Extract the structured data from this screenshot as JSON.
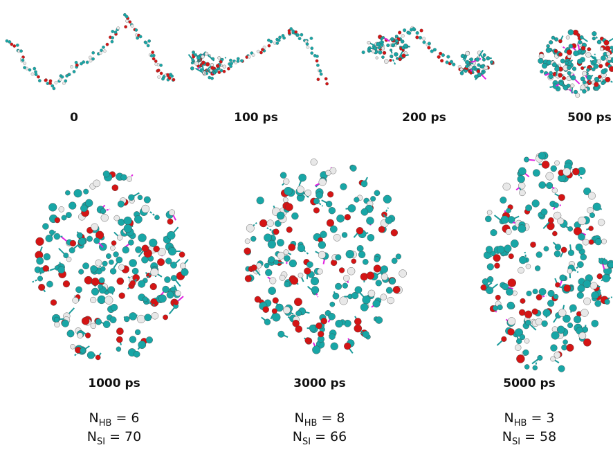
{
  "snapshots_top": [
    {
      "time": "0"
    },
    {
      "time": "100 ps"
    },
    {
      "time": "200 ps"
    },
    {
      "time": "500 ps"
    }
  ],
  "snapshots_bottom": [
    {
      "time": "1000 ps",
      "hb": {
        "symbol": "N",
        "sub": "HB",
        "value": "= 6"
      },
      "si": {
        "symbol": "N",
        "sub": "SI",
        "value": "= 70"
      }
    },
    {
      "time": "3000 ps",
      "hb": {
        "symbol": "N",
        "sub": "HB",
        "value": "= 8"
      },
      "si": {
        "symbol": "N",
        "sub": "SI",
        "value": "= 66"
      }
    },
    {
      "time": "5000 ps",
      "hb": {
        "symbol": "N",
        "sub": "HB",
        "value": "= 3"
      },
      "si": {
        "symbol": "N",
        "sub": "SI",
        "value": "= 58"
      }
    }
  ]
}
